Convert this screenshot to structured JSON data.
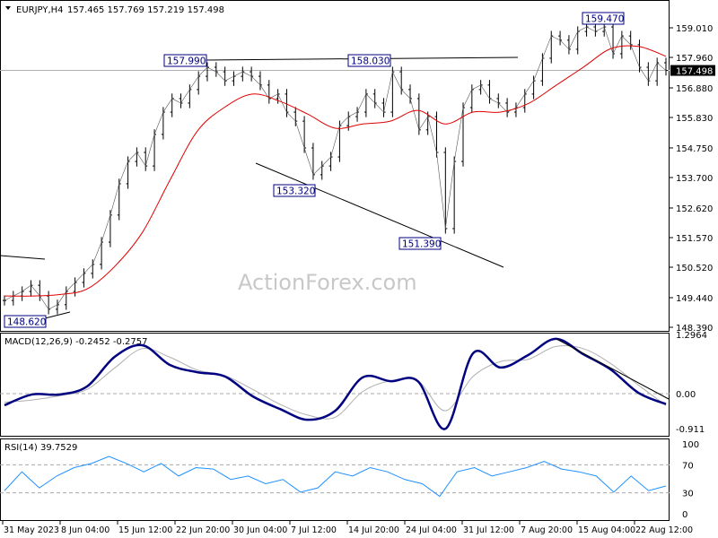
{
  "header": {
    "symbol": "EURJPY,H4",
    "ohlc": "157.465 157.769 157.219 157.498"
  },
  "watermark": "ActionForex.com",
  "colors": {
    "bars": "#000000",
    "ma": "#e00000",
    "macd": "#000080",
    "signal": "#b0b0b0",
    "rsi": "#1e90ff",
    "trend": "#000000",
    "label_border": "#000080"
  },
  "chart_data": [
    {
      "type": "line",
      "name_label": "price",
      "y_ticks": [
        "159.010",
        "157.960",
        "156.880",
        "155.830",
        "154.750",
        "153.700",
        "152.620",
        "151.570",
        "150.520",
        "149.440",
        "148.390"
      ],
      "ylim": [
        148.39,
        159.01
      ],
      "current_price": "157.498",
      "x_ticks": [
        "31 May 2023",
        "8 Jun 04:00",
        "15 Jun 12:00",
        "22 Jun 20:00",
        "30 Jun 04:00",
        "7 Jul 12:00",
        "14 Jul 20:00",
        "24 Jul 04:00",
        "31 Jul 12:00",
        "7 Aug 20:00",
        "15 Aug 04:00",
        "22 Aug 12:00"
      ],
      "close": [
        149.34,
        149.5,
        149.66,
        149.88,
        149.5,
        149.03,
        149.19,
        149.66,
        149.98,
        150.3,
        150.62,
        151.41,
        152.37,
        153.48,
        154.27,
        154.59,
        154.11,
        155.23,
        156.02,
        156.5,
        156.34,
        156.82,
        157.29,
        157.61,
        157.45,
        157.13,
        157.29,
        157.45,
        157.29,
        156.98,
        156.5,
        156.66,
        156.02,
        155.7,
        154.75,
        153.8,
        154.11,
        154.43,
        155.54,
        155.86,
        156.02,
        156.66,
        156.34,
        156.02,
        157.45,
        156.82,
        156.5,
        155.39,
        155.86,
        154.59,
        151.89,
        154.27,
        156.18,
        156.82,
        156.98,
        156.5,
        156.34,
        156.02,
        156.18,
        156.66,
        157.13,
        157.93,
        158.72,
        158.57,
        158.25,
        158.88,
        159.04,
        158.88,
        159.04,
        158.09,
        158.72,
        158.41,
        157.61,
        157.13,
        157.77,
        157.498
      ],
      "ma": [
        149.5,
        149.5,
        149.55,
        149.75,
        150.55,
        151.75,
        153.6,
        155.35,
        156.2,
        156.66,
        156.4,
        155.95,
        155.45,
        155.6,
        155.7,
        156.08,
        155.6,
        156.02,
        156.02,
        156.32,
        156.96,
        157.61,
        158.27,
        158.35,
        158.0
      ],
      "annotations": [
        "157.990",
        "158.030",
        "159.470",
        "153.320",
        "151.390",
        "148.620"
      ]
    },
    {
      "type": "line",
      "title": "MACD(12,26,9) -0.2452 -0.2757",
      "y_ticks": [
        "1.2964",
        "0.00",
        "-0.911"
      ],
      "ylim": [
        -0.911,
        1.2964
      ],
      "macd": [
        -0.27,
        -0.02,
        -0.02,
        0.17,
        0.86,
        1.13,
        0.67,
        0.5,
        0.4,
        -0.06,
        -0.36,
        -0.61,
        -0.4,
        0.38,
        0.29,
        0.29,
        -0.82,
        0.94,
        0.61,
        0.9,
        1.28,
        0.92,
        0.56,
        0.02,
        -0.2452
      ],
      "signal": [
        -0.2,
        -0.15,
        -0.05,
        0.1,
        0.6,
        1.05,
        0.85,
        0.55,
        0.42,
        0.1,
        -0.25,
        -0.5,
        -0.55,
        0.05,
        0.3,
        0.3,
        -0.4,
        0.4,
        0.75,
        0.8,
        1.1,
        1.05,
        0.7,
        0.2,
        -0.2757
      ]
    },
    {
      "type": "line",
      "title": "RSI(14) 39.7529",
      "y_ticks": [
        "100",
        "70",
        "30",
        "0"
      ],
      "ylim": [
        0,
        100
      ],
      "levels": [
        70,
        30
      ],
      "rsi": [
        33,
        60,
        37,
        54,
        66,
        72,
        82,
        72,
        60,
        72,
        54,
        66,
        64,
        49,
        54,
        43,
        49,
        31,
        37,
        60,
        54,
        66,
        60,
        49,
        43,
        25,
        60,
        66,
        54,
        60,
        66,
        75,
        64,
        60,
        54,
        31,
        54,
        33,
        39.75
      ]
    }
  ]
}
